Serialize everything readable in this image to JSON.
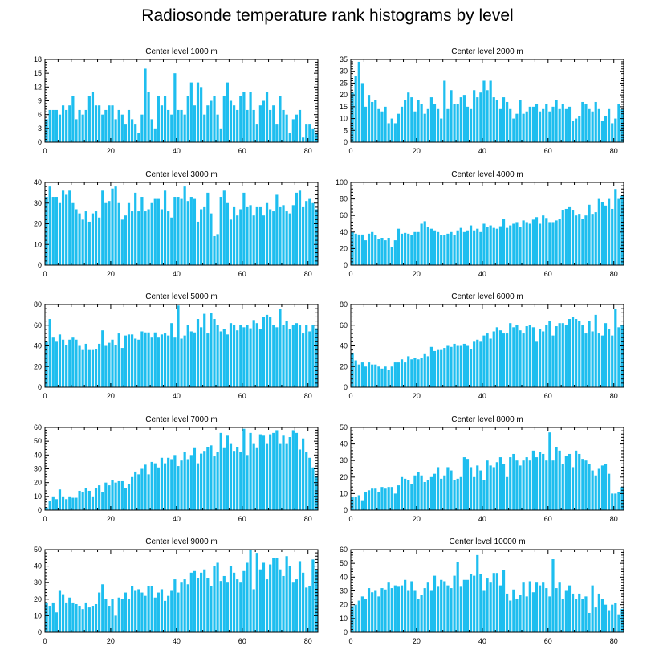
{
  "title": "Radiosonde temperature rank histograms by level",
  "colors": {
    "bar": "#1ebeef",
    "axis": "#000000"
  },
  "chart_data": [
    {
      "type": "bar",
      "title": "Center level 1000 m",
      "xlim": [
        0,
        83
      ],
      "ylim": [
        0,
        18
      ],
      "xticks": [
        0,
        20,
        40,
        60,
        80
      ],
      "yticks": [
        0,
        3,
        6,
        9,
        12,
        15,
        18
      ],
      "values": [
        5,
        7,
        7,
        7,
        6,
        8,
        7,
        8,
        10,
        5,
        7,
        6,
        7,
        10,
        11,
        8,
        8,
        6,
        7,
        8,
        8,
        5,
        7,
        6,
        4,
        7,
        5,
        4,
        2,
        6,
        16,
        11,
        5,
        3,
        10,
        8,
        10,
        7,
        6,
        15,
        7,
        7,
        6,
        10,
        13,
        8,
        13,
        12,
        6,
        8,
        9,
        10,
        6,
        3,
        10,
        13,
        9,
        8,
        7,
        10,
        11,
        7,
        11,
        7,
        4,
        8,
        9,
        11,
        7,
        8,
        4,
        10,
        7,
        6,
        2,
        5,
        6,
        7,
        1,
        4,
        4,
        3,
        2
      ]
    },
    {
      "type": "bar",
      "title": "Center level 2000 m",
      "xlim": [
        0,
        83
      ],
      "ylim": [
        0,
        35
      ],
      "xticks": [
        0,
        20,
        40,
        60,
        80
      ],
      "yticks": [
        0,
        5,
        10,
        15,
        20,
        25,
        30,
        35
      ],
      "values": [
        21,
        28,
        34,
        25,
        15,
        20,
        17,
        18,
        14,
        13,
        15,
        8,
        10,
        8,
        12,
        15,
        18,
        21,
        19,
        13,
        18,
        16,
        12,
        14,
        19,
        16,
        14,
        10,
        26,
        14,
        22,
        16,
        16,
        19,
        20,
        15,
        14,
        22,
        19,
        21,
        26,
        22,
        26,
        19,
        18,
        14,
        19,
        17,
        14,
        10,
        12,
        18,
        12,
        13,
        15,
        15,
        16,
        13,
        14,
        16,
        13,
        15,
        18,
        14,
        16,
        14,
        15,
        9,
        10,
        11,
        17,
        16,
        14,
        13,
        17,
        14,
        9,
        11,
        14,
        8,
        10,
        16,
        14
      ]
    },
    {
      "type": "bar",
      "title": "Center level 3000 m",
      "xlim": [
        0,
        83
      ],
      "ylim": [
        0,
        40
      ],
      "xticks": [
        0,
        20,
        40,
        60,
        80
      ],
      "yticks": [
        0,
        10,
        20,
        30,
        40
      ],
      "values": [
        33,
        38,
        33,
        33,
        30,
        36,
        34,
        36,
        30,
        27,
        25,
        22,
        26,
        21,
        25,
        26,
        23,
        36,
        30,
        31,
        37,
        38,
        30,
        22,
        24,
        30,
        26,
        35,
        26,
        33,
        26,
        27,
        30,
        32,
        32,
        27,
        36,
        26,
        23,
        33,
        33,
        32,
        38,
        31,
        33,
        32,
        21,
        27,
        28,
        35,
        25,
        14,
        15,
        33,
        36,
        30,
        22,
        28,
        24,
        27,
        35,
        28,
        29,
        24,
        28,
        28,
        24,
        30,
        27,
        26,
        34,
        28,
        29,
        26,
        25,
        29,
        35,
        36,
        28,
        31,
        32,
        30,
        27
      ]
    },
    {
      "type": "bar",
      "title": "Center level 4000 m",
      "xlim": [
        0,
        83
      ],
      "ylim": [
        0,
        100
      ],
      "xticks": [
        0,
        20,
        40,
        60,
        80
      ],
      "yticks": [
        0,
        20,
        40,
        60,
        80,
        100
      ],
      "values": [
        40,
        38,
        37,
        37,
        30,
        38,
        40,
        36,
        32,
        33,
        30,
        33,
        22,
        30,
        44,
        38,
        39,
        38,
        36,
        40,
        40,
        50,
        53,
        46,
        44,
        42,
        40,
        36,
        36,
        38,
        40,
        36,
        42,
        45,
        40,
        42,
        48,
        42,
        44,
        40,
        50,
        46,
        48,
        45,
        44,
        47,
        56,
        45,
        48,
        50,
        52,
        46,
        54,
        52,
        50,
        55,
        58,
        50,
        60,
        57,
        52,
        52,
        54,
        56,
        66,
        68,
        70,
        66,
        60,
        62,
        56,
        60,
        73,
        62,
        64,
        80,
        76,
        72,
        80,
        68,
        92,
        80,
        84
      ]
    },
    {
      "type": "bar",
      "title": "Center level 5000 m",
      "xlim": [
        0,
        83
      ],
      "ylim": [
        0,
        80
      ],
      "xticks": [
        0,
        20,
        40,
        60,
        80
      ],
      "yticks": [
        0,
        20,
        40,
        60,
        80
      ],
      "values": [
        44,
        66,
        48,
        44,
        51,
        46,
        41,
        46,
        48,
        46,
        40,
        36,
        42,
        36,
        36,
        37,
        42,
        55,
        40,
        43,
        46,
        41,
        52,
        38,
        50,
        51,
        51,
        47,
        46,
        54,
        53,
        53,
        48,
        53,
        48,
        51,
        52,
        50,
        62,
        48,
        79,
        47,
        50,
        60,
        54,
        53,
        66,
        58,
        71,
        52,
        72,
        66,
        60,
        54,
        56,
        51,
        62,
        60,
        55,
        60,
        58,
        60,
        57,
        65,
        62,
        56,
        68,
        70,
        68,
        60,
        58,
        76,
        60,
        64,
        56,
        60,
        62,
        60,
        52,
        60,
        54,
        60,
        57
      ]
    },
    {
      "type": "bar",
      "title": "Center level 6000 m",
      "xlim": [
        0,
        83
      ],
      "ylim": [
        0,
        80
      ],
      "xticks": [
        0,
        20,
        40,
        60,
        80
      ],
      "yticks": [
        0,
        20,
        40,
        60,
        80
      ],
      "values": [
        33,
        26,
        22,
        24,
        20,
        24,
        22,
        22,
        20,
        18,
        20,
        17,
        20,
        24,
        24,
        27,
        24,
        30,
        27,
        28,
        27,
        28,
        32,
        30,
        39,
        35,
        36,
        36,
        38,
        40,
        39,
        42,
        40,
        40,
        42,
        40,
        37,
        44,
        46,
        44,
        50,
        52,
        47,
        54,
        58,
        55,
        52,
        52,
        62,
        58,
        60,
        55,
        52,
        59,
        60,
        58,
        44,
        56,
        54,
        60,
        64,
        50,
        59,
        62,
        62,
        60,
        66,
        68,
        66,
        64,
        60,
        52,
        64,
        54,
        70,
        52,
        50,
        62,
        56,
        50,
        76,
        58,
        60
      ]
    },
    {
      "type": "bar",
      "title": "Center level 7000 m",
      "xlim": [
        0,
        83
      ],
      "ylim": [
        0,
        60
      ],
      "xticks": [
        0,
        20,
        40,
        60,
        80
      ],
      "yticks": [
        0,
        10,
        20,
        30,
        40,
        50,
        60
      ],
      "values": [
        2,
        7,
        10,
        8,
        15,
        10,
        8,
        10,
        9,
        9,
        14,
        13,
        16,
        14,
        10,
        16,
        18,
        13,
        20,
        18,
        22,
        20,
        21,
        21,
        16,
        19,
        24,
        28,
        26,
        30,
        33,
        26,
        35,
        34,
        31,
        38,
        34,
        38,
        37,
        40,
        32,
        36,
        42,
        37,
        40,
        45,
        34,
        41,
        43,
        46,
        47,
        39,
        42,
        56,
        45,
        54,
        48,
        43,
        46,
        42,
        59,
        40,
        56,
        48,
        45,
        55,
        54,
        48,
        55,
        56,
        58,
        48,
        54,
        48,
        53,
        58,
        56,
        44,
        52,
        42,
        38,
        31,
        25
      ]
    },
    {
      "type": "bar",
      "title": "Center level 8000 m",
      "xlim": [
        0,
        83
      ],
      "ylim": [
        0,
        50
      ],
      "xticks": [
        0,
        20,
        40,
        60,
        80
      ],
      "yticks": [
        0,
        10,
        20,
        30,
        40,
        50
      ],
      "values": [
        8,
        8,
        9,
        6,
        11,
        12,
        13,
        13,
        11,
        14,
        13,
        14,
        14,
        10,
        15,
        20,
        19,
        18,
        16,
        21,
        23,
        21,
        17,
        18,
        20,
        22,
        26,
        19,
        21,
        26,
        24,
        18,
        19,
        20,
        32,
        31,
        26,
        20,
        27,
        24,
        18,
        30,
        27,
        26,
        29,
        32,
        28,
        20,
        32,
        34,
        30,
        27,
        30,
        32,
        30,
        36,
        32,
        35,
        34,
        30,
        47,
        30,
        38,
        36,
        28,
        33,
        34,
        26,
        36,
        34,
        31,
        30,
        28,
        24,
        21,
        25,
        27,
        28,
        22,
        10,
        10,
        11,
        14
      ]
    },
    {
      "type": "bar",
      "title": "Center level 9000 m",
      "xlim": [
        0,
        83
      ],
      "ylim": [
        0,
        50
      ],
      "xticks": [
        0,
        20,
        40,
        60,
        80
      ],
      "yticks": [
        0,
        10,
        20,
        30,
        40,
        50
      ],
      "values": [
        18,
        16,
        18,
        12,
        25,
        23,
        18,
        21,
        18,
        17,
        16,
        14,
        18,
        15,
        16,
        17,
        24,
        29,
        20,
        16,
        20,
        10,
        21,
        20,
        24,
        20,
        28,
        25,
        26,
        24,
        22,
        28,
        28,
        21,
        24,
        26,
        19,
        22,
        25,
        32,
        24,
        30,
        32,
        29,
        36,
        37,
        33,
        36,
        38,
        33,
        28,
        40,
        42,
        31,
        34,
        30,
        40,
        36,
        32,
        30,
        37,
        42,
        50,
        26,
        48,
        38,
        42,
        32,
        41,
        45,
        45,
        38,
        34,
        46,
        40,
        30,
        32,
        43,
        36,
        27,
        28,
        44,
        38
      ]
    },
    {
      "type": "bar",
      "title": "Center level 10000 m",
      "xlim": [
        0,
        83
      ],
      "ylim": [
        0,
        60
      ],
      "xticks": [
        0,
        20,
        40,
        60,
        80
      ],
      "yticks": [
        0,
        10,
        20,
        30,
        40,
        50,
        60
      ],
      "values": [
        19,
        20,
        23,
        26,
        24,
        32,
        29,
        30,
        26,
        32,
        31,
        36,
        32,
        34,
        33,
        34,
        38,
        30,
        37,
        30,
        24,
        27,
        32,
        36,
        30,
        41,
        33,
        38,
        37,
        34,
        32,
        41,
        51,
        33,
        38,
        38,
        42,
        41,
        56,
        42,
        30,
        39,
        36,
        43,
        43,
        34,
        45,
        28,
        23,
        31,
        24,
        27,
        36,
        26,
        37,
        29,
        36,
        34,
        36,
        32,
        26,
        53,
        32,
        36,
        24,
        30,
        34,
        28,
        24,
        28,
        24,
        26,
        14,
        34,
        18,
        28,
        24,
        20,
        16,
        20,
        21,
        13,
        17
      ]
    }
  ]
}
